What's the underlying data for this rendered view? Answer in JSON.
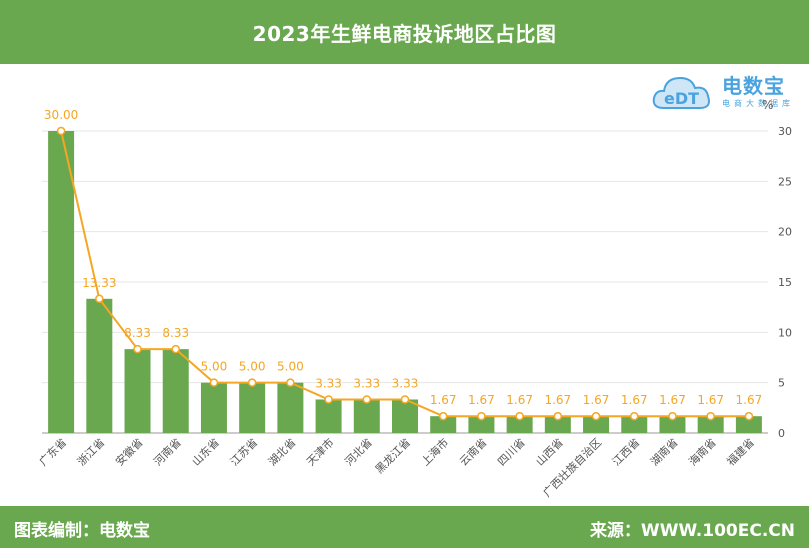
{
  "header": {
    "title": "2023年生鲜电商投诉地区占比图"
  },
  "logo": {
    "name": "电数宝",
    "tagline": "电商大数据库",
    "icon": "cloud-edt-icon",
    "mark": "eDT"
  },
  "footer": {
    "left": "图表编制：电数宝",
    "right": "来源：WWW.100EC.CN"
  },
  "colors": {
    "bar": "#6aa84f",
    "line": "#f5a623",
    "header": "#6aa84f"
  },
  "chart_data": {
    "type": "bar",
    "ylabel": "%",
    "ylim": [
      0,
      30
    ],
    "yticks": [
      "0",
      "5",
      "10",
      "15",
      "20",
      "25",
      "30"
    ],
    "grid": true,
    "categories": [
      "广东省",
      "浙江省",
      "安徽省",
      "河南省",
      "山东省",
      "江苏省",
      "湖北省",
      "天津市",
      "河北省",
      "黑龙江省",
      "上海市",
      "云南省",
      "四川省",
      "山西省",
      "广西壮族自治区",
      "江西省",
      "湖南省",
      "海南省",
      "福建省"
    ],
    "values": [
      30.0,
      13.33,
      8.33,
      8.33,
      5.0,
      5.0,
      5.0,
      3.33,
      3.33,
      3.33,
      1.67,
      1.67,
      1.67,
      1.67,
      1.67,
      1.67,
      1.67,
      1.67,
      1.67
    ],
    "labels": [
      "30.00",
      "13.33",
      "8.33",
      "8.33",
      "5.00",
      "5.00",
      "5.00",
      "3.33",
      "3.33",
      "3.33",
      "1.67",
      "1.67",
      "1.67",
      "1.67",
      "1.67",
      "1.67",
      "1.67",
      "1.67",
      "1.67"
    ]
  }
}
